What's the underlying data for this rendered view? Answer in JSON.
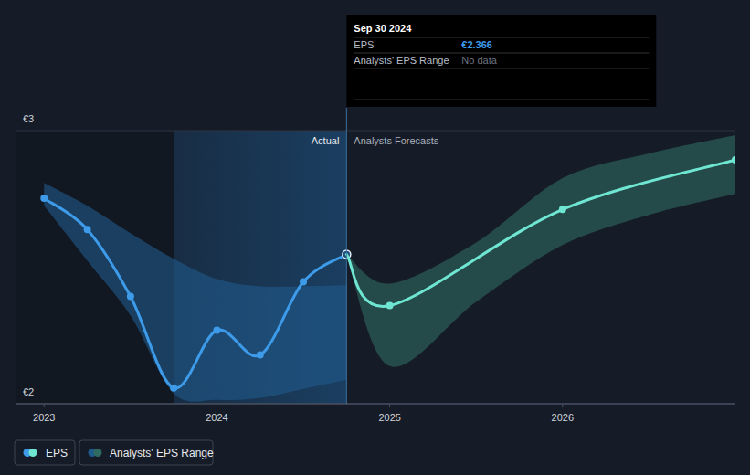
{
  "chart_data": {
    "type": "line",
    "xlim": [
      2022.84,
      2027.0
    ],
    "xticks": [
      2023,
      2024,
      2025,
      2026
    ],
    "ylim": [
      1.6,
      3
    ],
    "yticks": [
      {
        "value": 1.6,
        "label": "€2"
      },
      {
        "value": 3,
        "label": "€3"
      }
    ],
    "grid": true,
    "marker": "circle",
    "series": [
      {
        "name": "EPS",
        "color": "#3d9be9",
        "x": [
          2023.0,
          2023.25,
          2023.5,
          2023.75,
          2024.0,
          2024.25,
          2024.5,
          2024.75
        ],
        "values": [
          2.653,
          2.493,
          2.15,
          1.681,
          1.977,
          1.85,
          2.225,
          2.366
        ]
      },
      {
        "name": "EPS",
        "color": "#6fe6d2",
        "x": [
          2024.75,
          2025.0,
          2026.0,
          2027.0
        ],
        "values": [
          2.366,
          2.103,
          2.596,
          2.85
        ]
      }
    ],
    "ranges": [
      {
        "name": "Analysts' EPS Range",
        "color": "#1f5a8c",
        "x": [
          2023.0,
          2023.25,
          2023.5,
          2023.75,
          2024.0,
          2024.25,
          2024.5,
          2024.75
        ],
        "upper": [
          2.732,
          2.615,
          2.474,
          2.343,
          2.239,
          2.202,
          2.202,
          2.207
        ],
        "lower": [
          2.615,
          2.333,
          2.052,
          1.653,
          1.62,
          1.629,
          1.676,
          1.723
        ]
      },
      {
        "name": "Analysts' EPS Range",
        "color": "#2f6a60",
        "x": [
          2024.75,
          2025.0,
          2025.5,
          2026.0,
          2026.5,
          2027.0
        ],
        "upper": [
          2.366,
          2.216,
          2.427,
          2.756,
          2.883,
          2.977
        ],
        "lower": [
          2.366,
          1.793,
          2.122,
          2.413,
          2.568,
          2.676
        ]
      }
    ],
    "annotations": {
      "x": 2024.75,
      "left": "Actual",
      "right": "Analysts Forecasts"
    },
    "tooltip": {
      "title": "Sep 30 2024",
      "rows": [
        {
          "label": "EPS",
          "value": "€2.366"
        },
        {
          "label": "Analysts' EPS Range",
          "value": "No data"
        }
      ]
    }
  }
}
